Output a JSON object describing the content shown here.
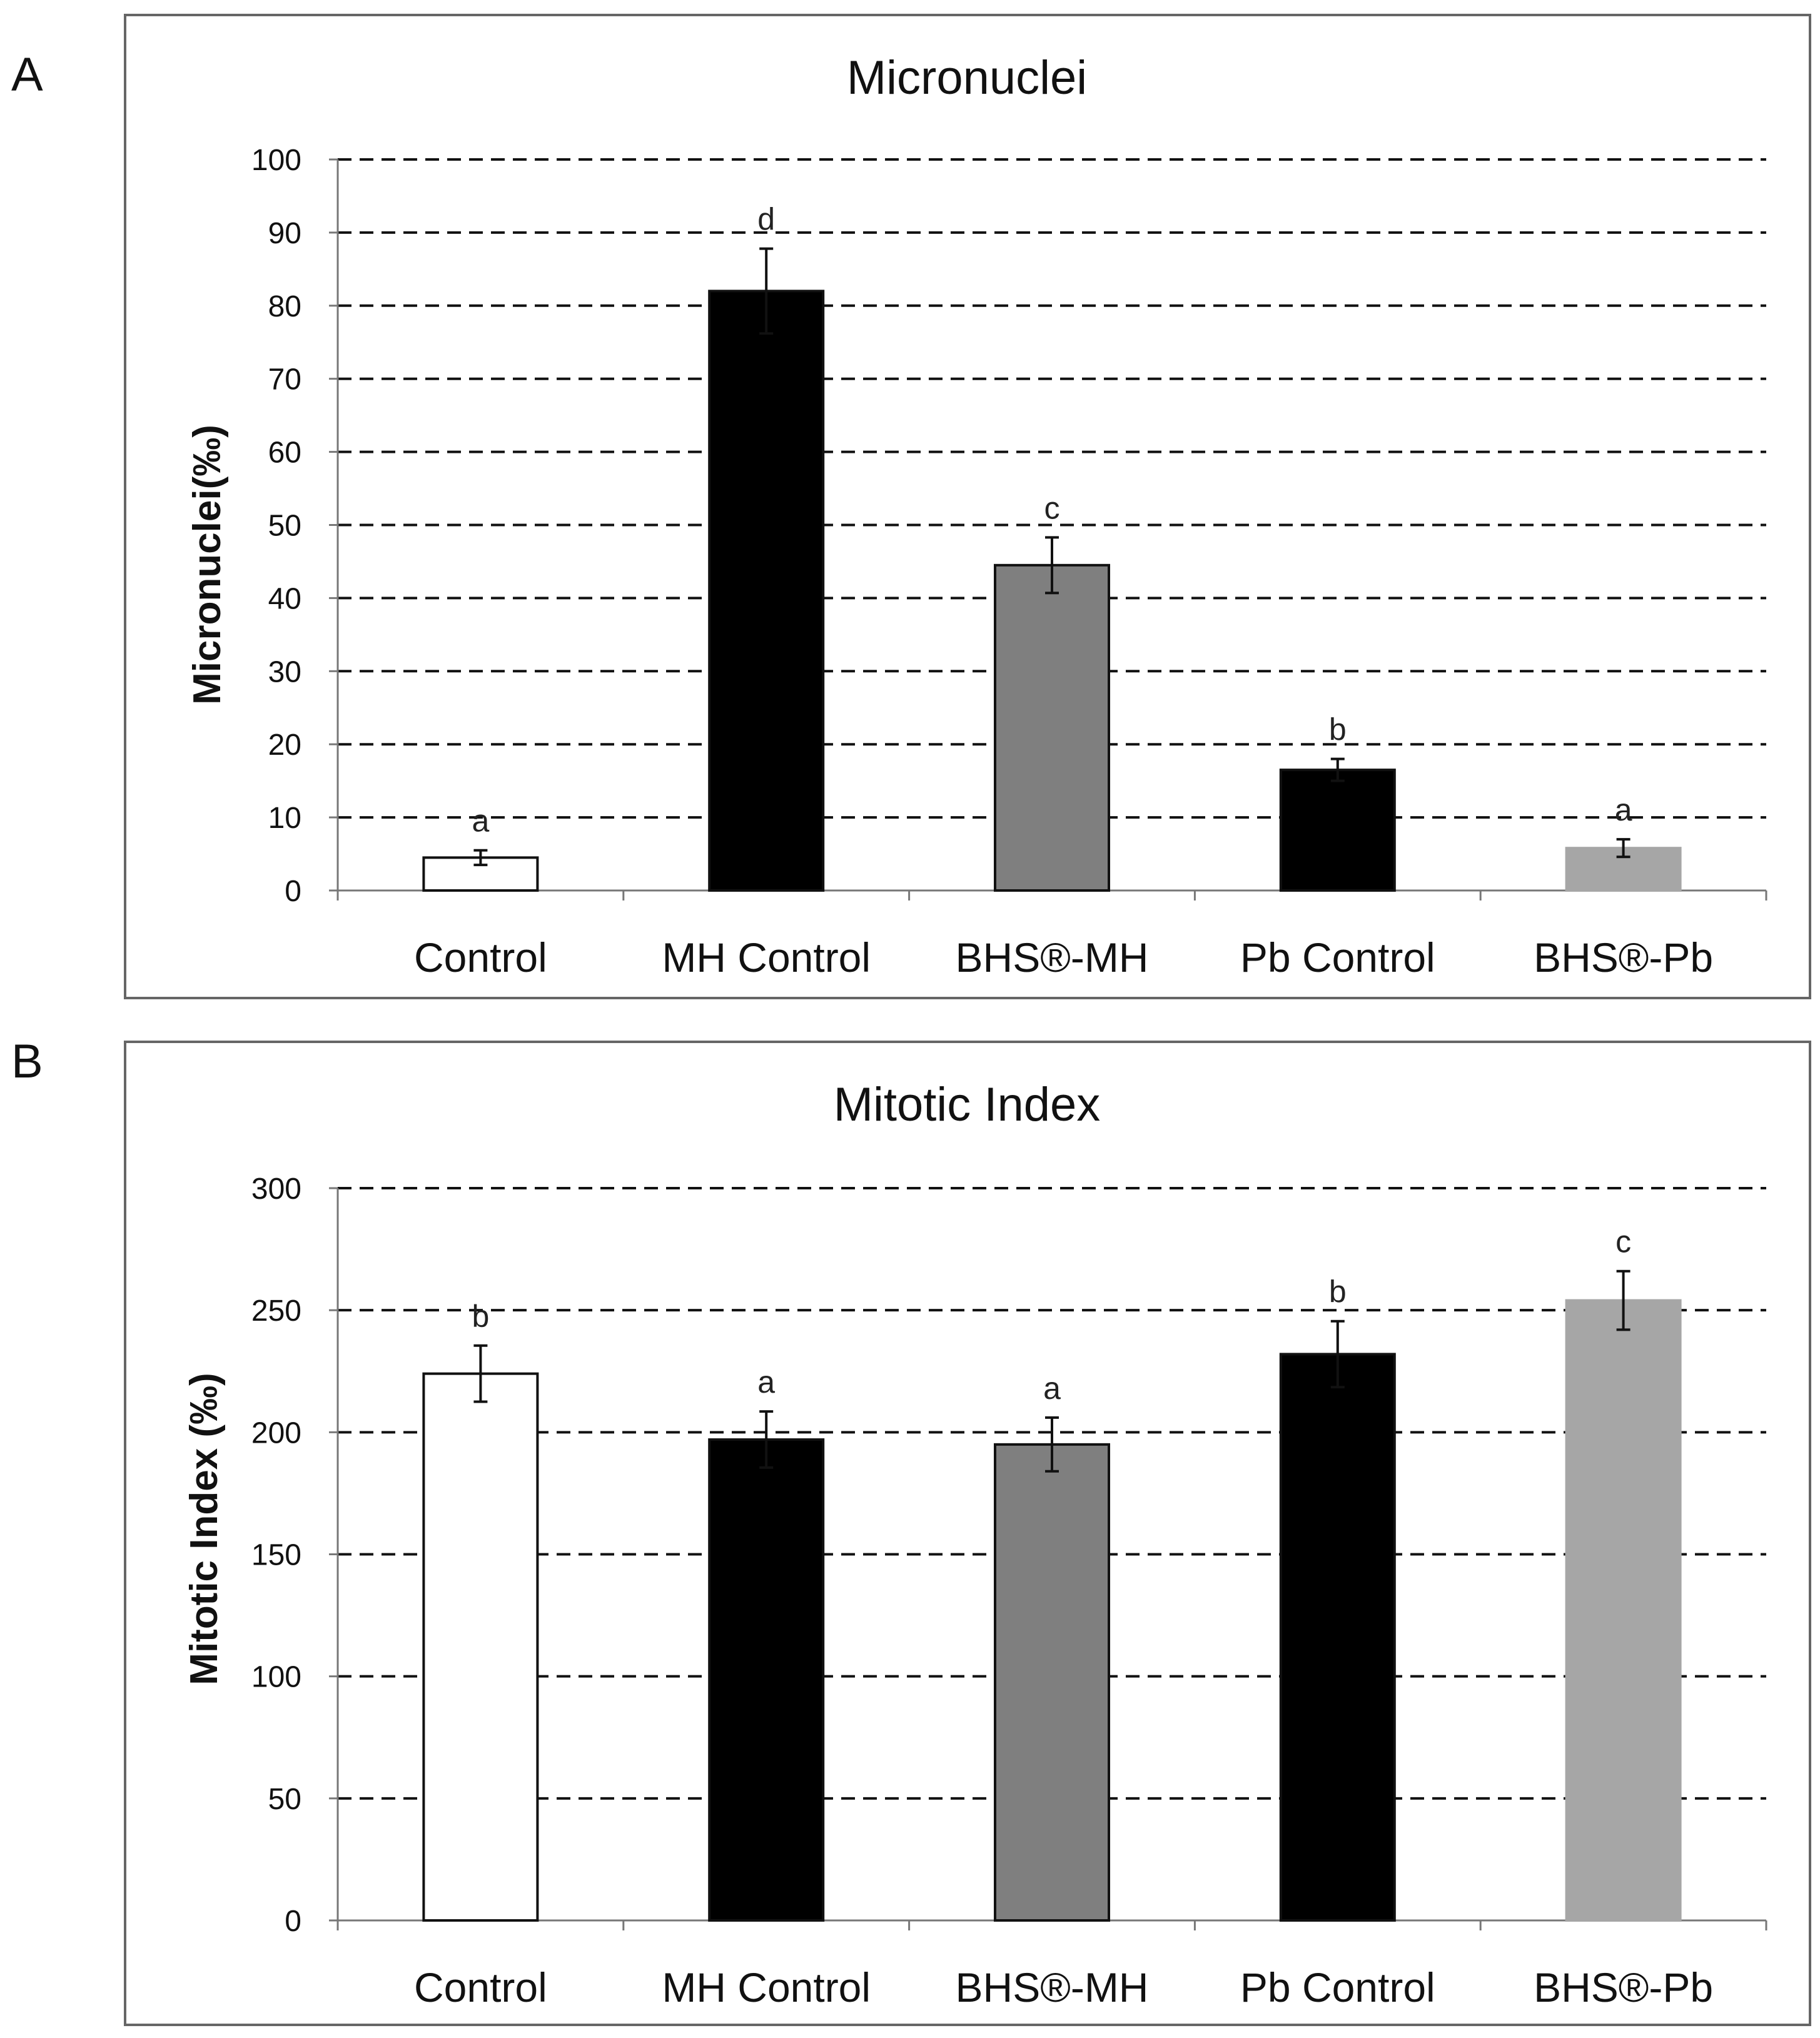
{
  "chart_data": [
    {
      "panel": "A",
      "type": "bar",
      "title": "Micronuclei",
      "xlabel": "",
      "ylabel": "Micronuclei(‰)",
      "ylim": [
        0,
        100
      ],
      "yticks": [
        0,
        10,
        20,
        30,
        40,
        50,
        60,
        70,
        80,
        90,
        100
      ],
      "grid": true,
      "categories": [
        "Control",
        "MH Control",
        "BHS®-MH",
        "Pb Control",
        "BHS®-Pb"
      ],
      "values": [
        4.5,
        82,
        44.5,
        16.5,
        5.8
      ],
      "errors": [
        1.0,
        5.8,
        3.8,
        1.5,
        1.2
      ],
      "significance": [
        "a",
        "d",
        "c",
        "b",
        "a"
      ],
      "colors": [
        "#ffffff",
        "#000000",
        "#7f7f7f",
        "#000000",
        "#a6a6a6"
      ]
    },
    {
      "panel": "B",
      "type": "bar",
      "title": "Mitotic Index",
      "xlabel": "",
      "ylabel": "Mitotic Index (‰)",
      "ylim": [
        0,
        300
      ],
      "yticks": [
        0,
        50,
        100,
        150,
        200,
        250,
        300
      ],
      "grid": true,
      "categories": [
        "Control",
        "MH Control",
        "BHS®-MH",
        "Pb Control",
        "BHS®-Pb"
      ],
      "values": [
        224,
        197,
        195,
        232,
        254
      ],
      "errors": [
        11.5,
        11.5,
        11,
        13.5,
        12
      ],
      "significance": [
        "b",
        "a",
        "a",
        "b",
        "c"
      ],
      "colors": [
        "#ffffff",
        "#000000",
        "#7f7f7f",
        "#000000",
        "#a6a6a6"
      ]
    }
  ]
}
